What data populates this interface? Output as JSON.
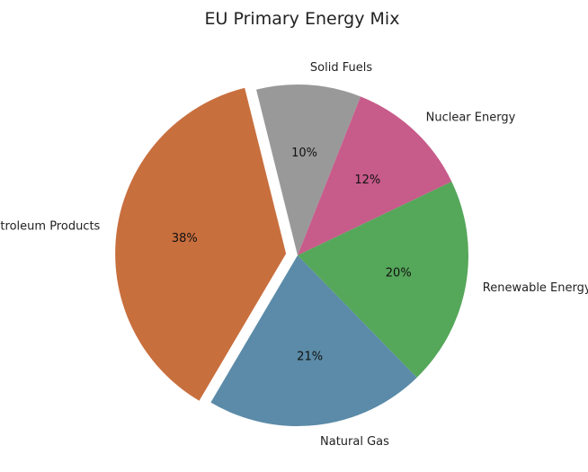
{
  "chart_data": {
    "type": "pie",
    "title": "EU Primary Energy Mix",
    "start_angle_deg": 104,
    "direction": "clockwise",
    "slices": [
      {
        "label": "Solid Fuels",
        "value": 10,
        "display": "10%",
        "color": "#999999",
        "exploded": false
      },
      {
        "label": "Nuclear Energy",
        "value": 12,
        "display": "12%",
        "color": "#c75b8a",
        "exploded": false
      },
      {
        "label": "Renewable Energy",
        "value": 20,
        "display": "20%",
        "color": "#55a75a",
        "exploded": false
      },
      {
        "label": "Natural Gas",
        "value": 21,
        "display": "21%",
        "color": "#5b8ba8",
        "exploded": false
      },
      {
        "label": "Petroleum Products",
        "value": 38,
        "display": "38%",
        "color": "#c86f3e",
        "exploded": true
      }
    ]
  }
}
